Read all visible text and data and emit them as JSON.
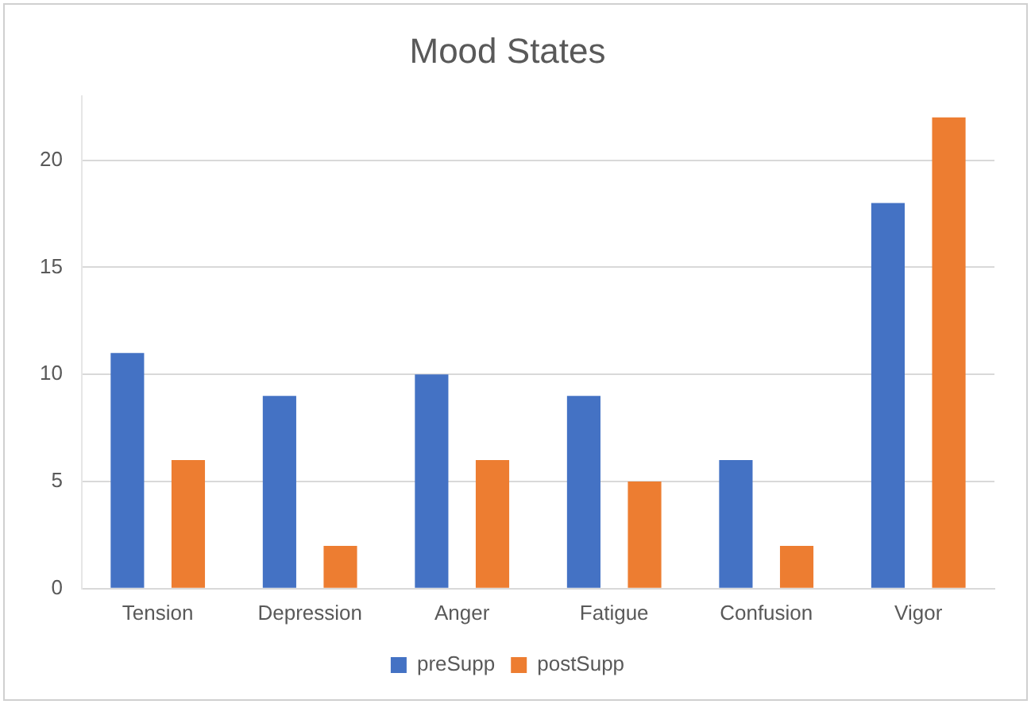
{
  "chart_data": {
    "type": "bar",
    "title": "Mood States",
    "categories": [
      "Tension",
      "Depression",
      "Anger",
      "Fatigue",
      "Confusion",
      "Vigor"
    ],
    "series": [
      {
        "name": "preSupp",
        "color": "#4472c4",
        "values": [
          11,
          9,
          10,
          9,
          6,
          18
        ]
      },
      {
        "name": "postSupp",
        "color": "#ed7d31",
        "values": [
          6,
          2,
          6,
          5,
          2,
          22
        ]
      }
    ],
    "ylim": [
      0,
      23
    ],
    "yticks": [
      0,
      5,
      10,
      15,
      20
    ],
    "grid": "y",
    "legend": "bottom"
  }
}
